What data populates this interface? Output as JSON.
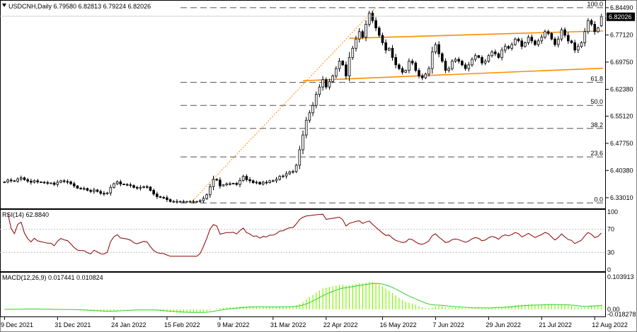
{
  "header": {
    "symbol_line": "USDCNH,Daily  6.79580 6.82813 6.79224 6.82026",
    "current_price": "6.82026"
  },
  "colors": {
    "candle_up_fill": "#ffffff",
    "candle_outline": "#000000",
    "trendline": "#ff8c00",
    "fib_line": "#505050",
    "fib_anchor": "#ff8c00",
    "rsi_line": "#8b0000",
    "macd_hist": "#7CFC00",
    "macd_signal": "#32CD32",
    "price_tag_bg": "#000000",
    "price_tag_fg": "#ffffff"
  },
  "chart_data": [
    {
      "type": "candlestick",
      "panel": "price",
      "title": "USDCNH,Daily",
      "ohlc_last": {
        "open": 6.7958,
        "high": 6.82813,
        "low": 6.79224,
        "close": 6.82026
      },
      "ylim": [
        6.305,
        6.86
      ],
      "y_ticks": [
        "6.84490",
        "6.77120",
        "6.69750",
        "6.62380",
        "6.55120",
        "6.47750",
        "6.40380",
        "6.33010"
      ],
      "x_ticks": [
        {
          "i": 0,
          "label": "9 Dec 2021"
        },
        {
          "i": 16,
          "label": "31 Dec 2021"
        },
        {
          "i": 33,
          "label": "24 Jan 2022"
        },
        {
          "i": 49,
          "label": "15 Feb 2022"
        },
        {
          "i": 65,
          "label": "9 Mar 2022"
        },
        {
          "i": 81,
          "label": "31 Mar 2022"
        },
        {
          "i": 97,
          "label": "22 Apr 2022"
        },
        {
          "i": 114,
          "label": "16 May 2022"
        },
        {
          "i": 130,
          "label": "7 Jun 2022"
        },
        {
          "i": 146,
          "label": "29 Jun 2022"
        },
        {
          "i": 162,
          "label": "21 Jul 2022"
        },
        {
          "i": 178,
          "label": "12 Aug 2022"
        }
      ],
      "closes": [
        6.373,
        6.378,
        6.376,
        6.375,
        6.381,
        6.384,
        6.379,
        6.375,
        6.372,
        6.376,
        6.373,
        6.372,
        6.371,
        6.37,
        6.37,
        6.366,
        6.372,
        6.376,
        6.374,
        6.373,
        6.368,
        6.362,
        6.356,
        6.355,
        6.355,
        6.35,
        6.347,
        6.351,
        6.347,
        6.342,
        6.341,
        6.343,
        6.358,
        6.368,
        6.373,
        6.367,
        6.366,
        6.365,
        6.363,
        6.358,
        6.356,
        6.358,
        6.36,
        6.359,
        6.35,
        6.34,
        6.333,
        6.331,
        6.33,
        6.325,
        6.32,
        6.32,
        6.32,
        6.32,
        6.32,
        6.32,
        6.32,
        6.32,
        6.32,
        6.322,
        6.328,
        6.338,
        6.36,
        6.38,
        6.378,
        6.362,
        6.365,
        6.368,
        6.368,
        6.369,
        6.366,
        6.377,
        6.388,
        6.379,
        6.376,
        6.371,
        6.372,
        6.367,
        6.372,
        6.371,
        6.376,
        6.376,
        6.38,
        6.388,
        6.389,
        6.395,
        6.4,
        6.401,
        6.418,
        6.46,
        6.5,
        6.54,
        6.56,
        6.58,
        6.61,
        6.63,
        6.65,
        6.63,
        6.645,
        6.66,
        6.68,
        6.7,
        6.69,
        6.66,
        6.71,
        6.735,
        6.76,
        6.78,
        6.765,
        6.8,
        6.83,
        6.81,
        6.79,
        6.77,
        6.75,
        6.73,
        6.735,
        6.71,
        6.69,
        6.68,
        6.67,
        6.675,
        6.7,
        6.695,
        6.675,
        6.66,
        6.655,
        6.665,
        6.68,
        6.725,
        6.745,
        6.72,
        6.7,
        6.675,
        6.68,
        6.7,
        6.705,
        6.7,
        6.69,
        6.68,
        6.69,
        6.705,
        6.715,
        6.71,
        6.695,
        6.7,
        6.715,
        6.725,
        6.72,
        6.71,
        6.73,
        6.74,
        6.735,
        6.745,
        6.76,
        6.755,
        6.74,
        6.75,
        6.765,
        6.755,
        6.745,
        6.755,
        6.765,
        6.78,
        6.775,
        6.76,
        6.745,
        6.76,
        6.785,
        6.77,
        6.755,
        6.75,
        6.73,
        6.74,
        6.75,
        6.78,
        6.81,
        6.8,
        6.78,
        6.79,
        6.82
      ],
      "trendline_upper": {
        "start": [
          104,
          6.762
        ],
        "end": [
          186,
          6.782
        ]
      },
      "trendline_lower": {
        "start": [
          90,
          6.647
        ],
        "end": [
          186,
          6.681
        ]
      },
      "fib_anchor_line": {
        "start": [
          56,
          6.315
        ],
        "end": [
          112,
          6.845
        ]
      },
      "fib_levels": [
        {
          "label": "100.0",
          "value": 6.8449
        },
        {
          "label": "61.8",
          "value": 6.6426
        },
        {
          "label": "50.0",
          "value": 6.5802
        },
        {
          "label": "38.2",
          "value": 6.5178
        },
        {
          "label": "23.6",
          "value": 6.4406
        },
        {
          "label": "0.0",
          "value": 6.316
        }
      ]
    },
    {
      "type": "line",
      "panel": "rsi",
      "title": "RSI(14) 62.8840",
      "ylim": [
        0,
        100
      ],
      "y_ticks": [
        "100",
        "70",
        "30",
        "0"
      ],
      "levels": [
        70,
        30
      ]
    },
    {
      "type": "bar+line",
      "panel": "macd",
      "title": "MACD(12,26,9) 0.017441 0.010824",
      "y_ticks": [
        "0.103913",
        "0.00",
        "-0.018278"
      ],
      "ylim": [
        -0.018278,
        0.103913
      ]
    }
  ]
}
